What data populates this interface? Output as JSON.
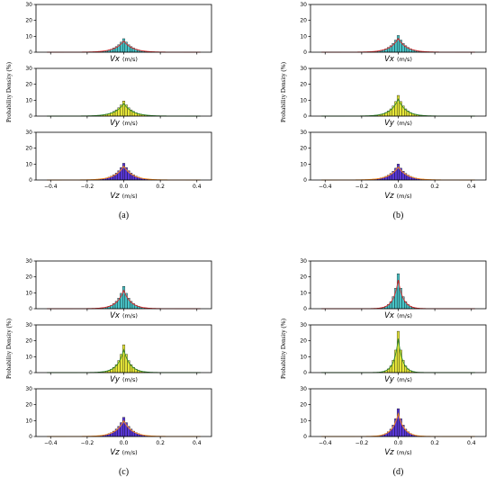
{
  "chart_data": [
    {
      "type": "bar",
      "caption": "(a)",
      "ylabel": "Probability Density (%)",
      "xlim": [
        -0.48,
        0.48
      ],
      "ylim": [
        0,
        30
      ],
      "yticks": [
        0,
        10,
        20,
        30
      ],
      "xticks": [
        -0.4,
        -0.2,
        0.0,
        0.2,
        0.4
      ],
      "subplots": [
        {
          "variable": "Vx",
          "unit": "(m/s)",
          "peak": 8.5,
          "scale": 0.045,
          "bar_color": "#48c4c8",
          "fit_color": "#e0282b"
        },
        {
          "variable": "Vy",
          "unit": "(m/s)",
          "peak": 9.5,
          "scale": 0.045,
          "bar_color": "#e8e83a",
          "fit_color": "#2f8b2f"
        },
        {
          "variable": "Vz",
          "unit": "(m/s)",
          "peak": 10.5,
          "scale": 0.045,
          "bar_color": "#5a38d8",
          "fit_color": "#ff8c1a"
        }
      ]
    },
    {
      "type": "bar",
      "caption": "(b)",
      "ylabel": "Probability Density (%)",
      "xlim": [
        -0.48,
        0.48
      ],
      "ylim": [
        0,
        30
      ],
      "yticks": [
        0,
        10,
        20,
        30
      ],
      "xticks": [
        -0.4,
        -0.2,
        0.0,
        0.2,
        0.4
      ],
      "subplots": [
        {
          "variable": "Vx",
          "unit": "(m/s)",
          "peak": 10.5,
          "scale": 0.042,
          "bar_color": "#48c4c8",
          "fit_color": "#e0282b"
        },
        {
          "variable": "Vy",
          "unit": "(m/s)",
          "peak": 13,
          "scale": 0.038,
          "bar_color": "#e8e83a",
          "fit_color": "#2f8b2f"
        },
        {
          "variable": "Vz",
          "unit": "(m/s)",
          "peak": 10,
          "scale": 0.045,
          "bar_color": "#5a38d8",
          "fit_color": "#ff8c1a"
        }
      ]
    },
    {
      "type": "bar",
      "caption": "(c)",
      "ylabel": "Probability Density (%)",
      "xlim": [
        -0.48,
        0.48
      ],
      "ylim": [
        0,
        30
      ],
      "yticks": [
        0,
        10,
        20,
        30
      ],
      "xticks": [
        -0.4,
        -0.2,
        0.0,
        0.2,
        0.4
      ],
      "subplots": [
        {
          "variable": "Vx",
          "unit": "(m/s)",
          "peak": 14,
          "scale": 0.036,
          "bar_color": "#48c4c8",
          "fit_color": "#e0282b"
        },
        {
          "variable": "Vy",
          "unit": "(m/s)",
          "peak": 17.5,
          "scale": 0.032,
          "bar_color": "#e8e83a",
          "fit_color": "#2f8b2f"
        },
        {
          "variable": "Vz",
          "unit": "(m/s)",
          "peak": 12,
          "scale": 0.042,
          "bar_color": "#5a38d8",
          "fit_color": "#ff8c1a"
        }
      ]
    },
    {
      "type": "bar",
      "caption": "(d)",
      "ylabel": "Probability Density (%)",
      "xlim": [
        -0.48,
        0.48
      ],
      "ylim": [
        0,
        30
      ],
      "yticks": [
        0,
        10,
        20,
        30
      ],
      "xticks": [
        -0.4,
        -0.2,
        0.0,
        0.2,
        0.4
      ],
      "subplots": [
        {
          "variable": "Vx",
          "unit": "(m/s)",
          "peak": 22,
          "scale": 0.025,
          "bar_color": "#48c4c8",
          "fit_color": "#e0282b"
        },
        {
          "variable": "Vy",
          "unit": "(m/s)",
          "peak": 26,
          "scale": 0.022,
          "bar_color": "#e8e83a",
          "fit_color": "#2f8b2f"
        },
        {
          "variable": "Vz",
          "unit": "(m/s)",
          "peak": 17.5,
          "scale": 0.03,
          "bar_color": "#5a38d8",
          "fit_color": "#ff8c1a"
        }
      ]
    }
  ]
}
